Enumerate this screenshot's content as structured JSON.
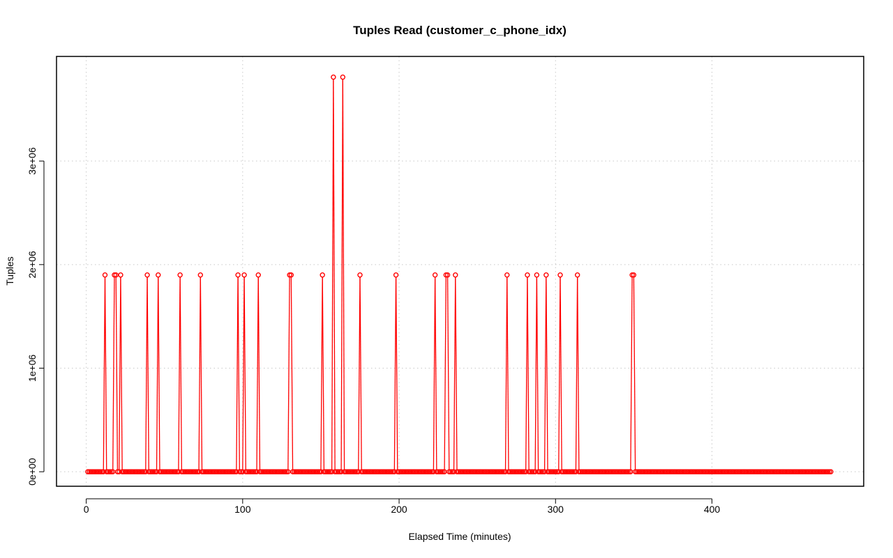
{
  "chart_data": {
    "type": "line",
    "title": "Tuples Read (customer_c_phone_idx)",
    "xlabel": "Elapsed Time (minutes)",
    "ylabel": "Tuples",
    "xlim": [
      -19,
      497
    ],
    "ylim": [
      -140000,
      4010000
    ],
    "x_ticks": [
      0,
      100,
      200,
      300,
      400
    ],
    "x_tick_labels": [
      "0",
      "100",
      "200",
      "300",
      "400"
    ],
    "y_ticks": [
      0,
      1000000,
      2000000,
      3000000
    ],
    "y_tick_labels": [
      "0e+00",
      "1e+06",
      "2e+06",
      "3e+06"
    ],
    "grid": true,
    "series": [
      {
        "color": "#ff0000",
        "marker": "open-circle",
        "x_range": [
          1,
          476
        ],
        "baseline_value": 0,
        "spikes": [
          {
            "x": 12,
            "y": 1900000
          },
          {
            "x": 18,
            "y": 1900000
          },
          {
            "x": 19,
            "y": 1900000
          },
          {
            "x": 22,
            "y": 1900000
          },
          {
            "x": 39,
            "y": 1900000
          },
          {
            "x": 46,
            "y": 1900000
          },
          {
            "x": 60,
            "y": 1900000
          },
          {
            "x": 73,
            "y": 1900000
          },
          {
            "x": 97,
            "y": 1900000
          },
          {
            "x": 101,
            "y": 1900000
          },
          {
            "x": 110,
            "y": 1900000
          },
          {
            "x": 130,
            "y": 1900000
          },
          {
            "x": 131,
            "y": 1900000
          },
          {
            "x": 151,
            "y": 1900000
          },
          {
            "x": 158,
            "y": 3810000
          },
          {
            "x": 164,
            "y": 3810000
          },
          {
            "x": 175,
            "y": 1900000
          },
          {
            "x": 198,
            "y": 1900000
          },
          {
            "x": 223,
            "y": 1900000
          },
          {
            "x": 230,
            "y": 1900000
          },
          {
            "x": 231,
            "y": 1900000
          },
          {
            "x": 236,
            "y": 1900000
          },
          {
            "x": 269,
            "y": 1900000
          },
          {
            "x": 282,
            "y": 1900000
          },
          {
            "x": 288,
            "y": 1900000
          },
          {
            "x": 294,
            "y": 1900000
          },
          {
            "x": 303,
            "y": 1900000
          },
          {
            "x": 314,
            "y": 1900000
          },
          {
            "x": 349,
            "y": 1900000
          },
          {
            "x": 350,
            "y": 1900000
          }
        ]
      }
    ]
  }
}
